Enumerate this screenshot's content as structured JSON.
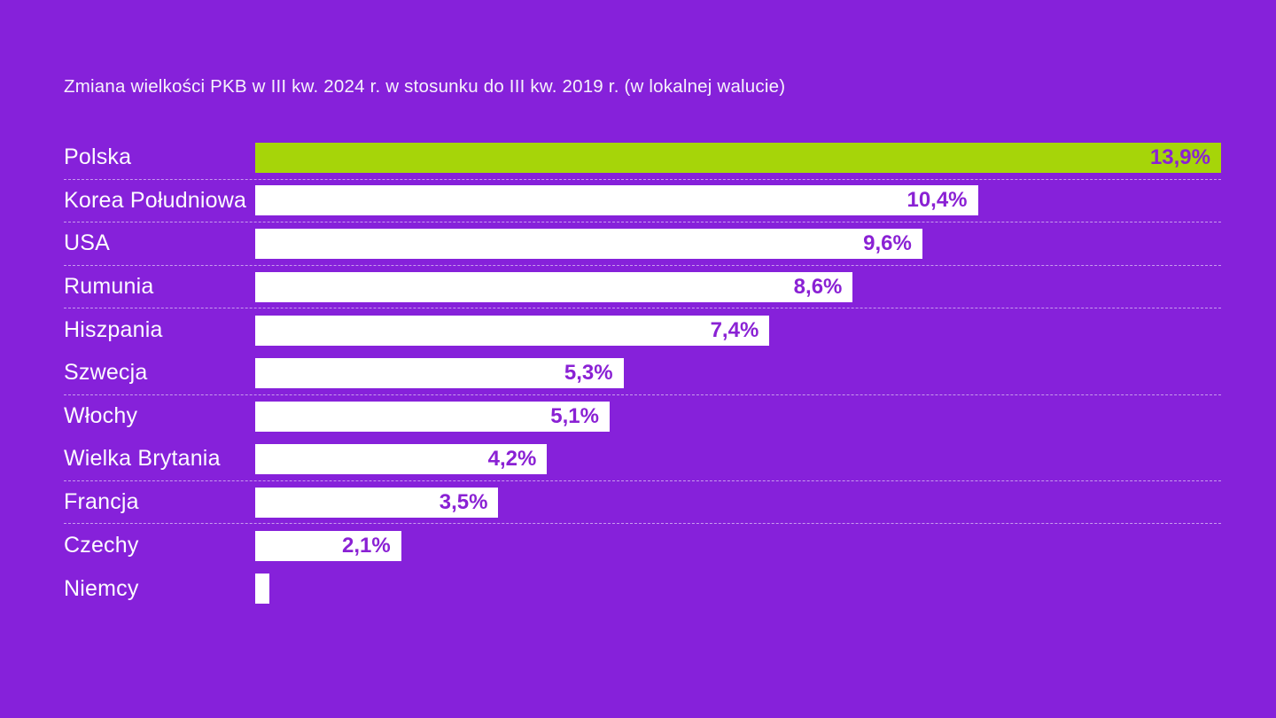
{
  "title": "Zmiana wielkości PKB w III kw. 2024 r. w stosunku do III kw. 2019 r. (w lokalnej walucie)",
  "colors": {
    "background": "#8621da",
    "bar_default": "#ffffff",
    "bar_highlight": "#a6d509",
    "value_text": "#8a21d4",
    "label_text": "#fdfbff",
    "separator": "rgba(255,255,255,0.55)"
  },
  "chart_data": {
    "type": "bar",
    "orientation": "horizontal",
    "title": "Zmiana wielkości PKB w III kw. 2024 r. w stosunku do III kw. 2019 r. (w lokalnej walucie)",
    "xlabel": "",
    "ylabel": "",
    "xlim": [
      0,
      13.9
    ],
    "grid": false,
    "legend": "none",
    "categories": [
      "Polska",
      "Korea Południowa",
      "USA",
      "Rumunia",
      "Hiszpania",
      "Szwecja",
      "Włochy",
      "Wielka Brytania",
      "Francja",
      "Czechy",
      "Niemcy"
    ],
    "values": [
      13.9,
      10.4,
      9.6,
      8.6,
      7.4,
      5.3,
      5.1,
      4.2,
      3.5,
      2.1,
      0.2
    ],
    "rows": [
      {
        "label": "Polska",
        "value": 13.9,
        "display": "13,9%",
        "highlight": true,
        "separator_after": true
      },
      {
        "label": "Korea Południowa",
        "value": 10.4,
        "display": "10,4%",
        "highlight": false,
        "separator_after": true
      },
      {
        "label": "USA",
        "value": 9.6,
        "display": "9,6%",
        "highlight": false,
        "separator_after": true
      },
      {
        "label": "Rumunia",
        "value": 8.6,
        "display": "8,6%",
        "highlight": false,
        "separator_after": true
      },
      {
        "label": "Hiszpania",
        "value": 7.4,
        "display": "7,4%",
        "highlight": false,
        "separator_after": false
      },
      {
        "label": "Szwecja",
        "value": 5.3,
        "display": "5,3%",
        "highlight": false,
        "separator_after": true
      },
      {
        "label": "Włochy",
        "value": 5.1,
        "display": "5,1%",
        "highlight": false,
        "separator_after": false
      },
      {
        "label": "Wielka Brytania",
        "value": 4.2,
        "display": "4,2%",
        "highlight": false,
        "separator_after": true
      },
      {
        "label": "Francja",
        "value": 3.5,
        "display": "3,5%",
        "highlight": false,
        "separator_after": true
      },
      {
        "label": "Czechy",
        "value": 2.1,
        "display": "2,1%",
        "highlight": false,
        "separator_after": false
      },
      {
        "label": "Niemcy",
        "value": 0.2,
        "display": "",
        "highlight": false,
        "separator_after": false
      }
    ]
  }
}
